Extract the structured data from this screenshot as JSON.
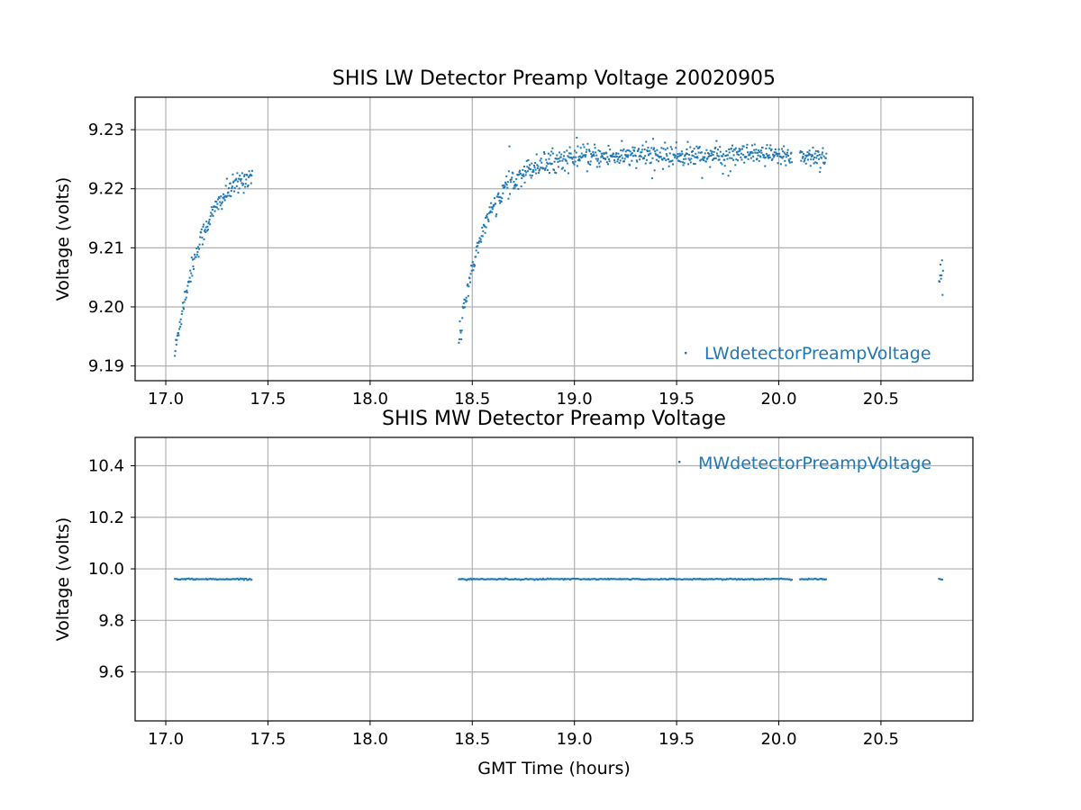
{
  "chart_data": [
    {
      "type": "scatter",
      "title": "SHIS LW Detector Preamp Voltage 20020905",
      "xlabel": "",
      "ylabel": "Voltage (volts)",
      "xlim": [
        16.85,
        20.95
      ],
      "ylim": [
        9.1875,
        9.2355
      ],
      "xticks": [
        "17.0",
        "17.5",
        "18.0",
        "18.5",
        "19.0",
        "19.5",
        "20.0",
        "20.5"
      ],
      "yticks": [
        "9.19",
        "9.20",
        "9.21",
        "9.22",
        "9.23"
      ],
      "grid": true,
      "legend_position": "lower-right",
      "color": "#1f77b4",
      "series": [
        {
          "name": "LWdetectorPreampVoltage",
          "segments": [
            {
              "x_start": 17.04,
              "x_end": 17.42,
              "y_start": 9.192,
              "y_plateau": 9.2245,
              "rise_hours": 0.14,
              "spread": 0.0017
            },
            {
              "x_start": 18.43,
              "x_end": 20.06,
              "y_start": 9.194,
              "y_plateau": 9.2256,
              "rise_hours": 0.13,
              "spread": 0.0017
            },
            {
              "x_start": 20.1,
              "x_end": 20.23,
              "y_start": 9.2255,
              "y_plateau": 9.2255,
              "rise_hours": 0.1,
              "spread": 0.0017
            },
            {
              "x_start": 20.78,
              "x_end": 20.8,
              "y_start": 9.205,
              "y_plateau": 9.205,
              "rise_hours": 0.1,
              "spread": 0.0028
            }
          ]
        }
      ]
    },
    {
      "type": "scatter",
      "title": "SHIS MW Detector Preamp Voltage",
      "xlabel": "GMT Time (hours)",
      "ylabel": "Voltage (volts)",
      "xlim": [
        16.85,
        20.95
      ],
      "ylim": [
        9.41,
        10.51
      ],
      "xticks": [
        "17.0",
        "17.5",
        "18.0",
        "18.5",
        "19.0",
        "19.5",
        "20.0",
        "20.5"
      ],
      "yticks": [
        "9.6",
        "9.8",
        "10.0",
        "10.2",
        "10.4"
      ],
      "grid": true,
      "legend_position": "upper-right",
      "color": "#1f77b4",
      "series": [
        {
          "name": "MWdetectorPreampVoltage",
          "segments": [
            {
              "x_start": 17.04,
              "x_end": 17.42,
              "y": 9.96
            },
            {
              "x_start": 18.43,
              "x_end": 20.06,
              "y": 9.96
            },
            {
              "x_start": 20.1,
              "x_end": 20.23,
              "y": 9.96
            },
            {
              "x_start": 20.78,
              "x_end": 20.8,
              "y": 9.96
            }
          ]
        }
      ]
    }
  ]
}
